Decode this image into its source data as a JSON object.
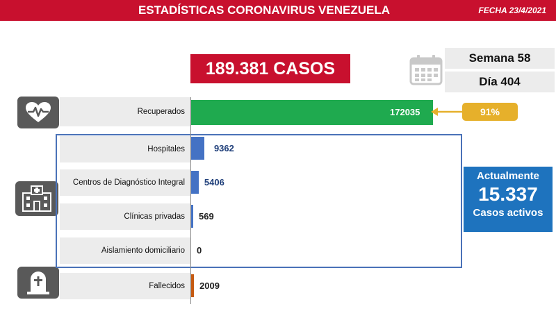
{
  "header": {
    "title": "ESTADÍSTICAS CORONAVIRUS VENEZUELA",
    "date": "FECHA 23/4/2021"
  },
  "summary": {
    "total_cases": "189.381 CASOS",
    "week": "Semana 58",
    "day": "Día 404"
  },
  "active": {
    "top": "Actualmente",
    "value": "15.337",
    "bottom": "Casos activos"
  },
  "recovered_percent": "91%",
  "colors": {
    "banner": "#c8102e",
    "recovered": "#1faa4f",
    "hospital": "#4472c4",
    "deceased": "#c55a11",
    "badge": "#e6b02b",
    "active": "#1e73be"
  },
  "chart_data": {
    "type": "bar",
    "orientation": "horizontal",
    "title": "189.381 CASOS",
    "categories": [
      "Recuperados",
      "Hospitales",
      "Centros de Diagnóstico Integral",
      "Clínicas privadas",
      "Aislamiento domiciliario",
      "Fallecidos"
    ],
    "values": [
      172035,
      9362,
      5406,
      569,
      0,
      2009
    ],
    "value_labels": [
      "172035",
      "9362",
      "5406",
      "569",
      "0",
      "2009"
    ],
    "xlim": [
      0,
      190000
    ]
  }
}
